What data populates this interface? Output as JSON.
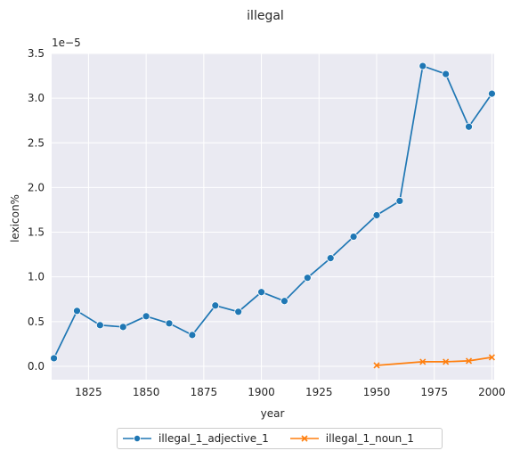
{
  "chart_data": {
    "type": "line",
    "title": "illegal",
    "xlabel": "year",
    "ylabel": "lexicon%",
    "y_scale_label": "1e−5",
    "xlim": [
      1809,
      2001
    ],
    "ylim": [
      -0.15,
      3.5
    ],
    "x_ticks": [
      1825,
      1850,
      1875,
      1900,
      1925,
      1950,
      1975,
      2000
    ],
    "x_tick_labels": [
      "1825",
      "1850",
      "1875",
      "1900",
      "1925",
      "1950",
      "1975",
      "2000"
    ],
    "y_ticks": [
      0.0,
      0.5,
      1.0,
      1.5,
      2.0,
      2.5,
      3.0,
      3.5
    ],
    "y_tick_labels": [
      "0.0",
      "0.5",
      "1.0",
      "1.5",
      "2.0",
      "2.5",
      "3.0",
      "3.5"
    ],
    "grid": true,
    "legend_position": "bottom-center",
    "series": [
      {
        "name": "illegal_1_adjective_1",
        "color": "#1f77b4",
        "marker": "circle",
        "x": [
          1810,
          1820,
          1830,
          1840,
          1850,
          1860,
          1870,
          1880,
          1890,
          1900,
          1910,
          1920,
          1930,
          1940,
          1950,
          1960,
          1970,
          1980,
          1990,
          2000
        ],
        "y": [
          0.09,
          0.62,
          0.46,
          0.44,
          0.56,
          0.48,
          0.35,
          0.68,
          0.61,
          0.83,
          0.73,
          0.99,
          1.21,
          1.45,
          1.69,
          1.85,
          3.36,
          3.27,
          2.68,
          3.05
        ]
      },
      {
        "name": "illegal_1_noun_1",
        "color": "#ff7f0e",
        "marker": "x",
        "x": [
          1950,
          1970,
          1980,
          1990,
          2000
        ],
        "y": [
          0.01,
          0.05,
          0.05,
          0.06,
          0.1
        ]
      }
    ]
  }
}
